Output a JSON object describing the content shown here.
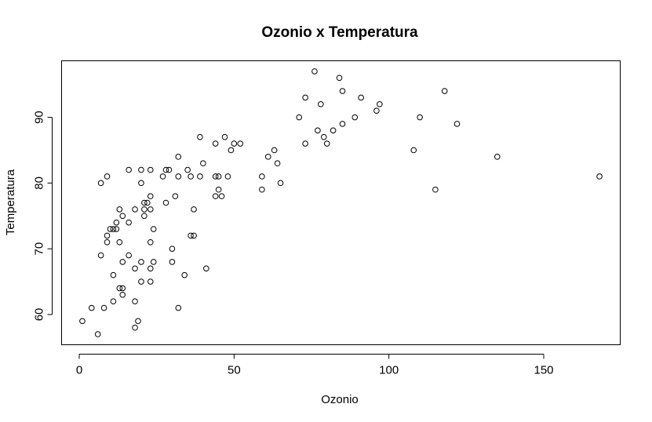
{
  "chart_data": {
    "type": "scatter",
    "title": "Ozonio x Temperatura",
    "xlabel": "Ozonio",
    "ylabel": "Temperatura",
    "xlim": [
      -5.7,
      174.7
    ],
    "ylim": [
      55.4,
      98.6
    ],
    "xticks": [
      0,
      50,
      100,
      150
    ],
    "yticks": [
      60,
      70,
      80,
      90
    ],
    "grid": false,
    "marker": "open-circle",
    "points": [
      {
        "x": 1,
        "y": 59
      },
      {
        "x": 4,
        "y": 61
      },
      {
        "x": 6,
        "y": 57
      },
      {
        "x": 7,
        "y": 69
      },
      {
        "x": 7,
        "y": 80
      },
      {
        "x": 8,
        "y": 61
      },
      {
        "x": 9,
        "y": 81
      },
      {
        "x": 9,
        "y": 72
      },
      {
        "x": 9,
        "y": 71
      },
      {
        "x": 10,
        "y": 73
      },
      {
        "x": 11,
        "y": 66
      },
      {
        "x": 11,
        "y": 73
      },
      {
        "x": 11,
        "y": 62
      },
      {
        "x": 12,
        "y": 73
      },
      {
        "x": 12,
        "y": 74
      },
      {
        "x": 13,
        "y": 76
      },
      {
        "x": 13,
        "y": 71
      },
      {
        "x": 13,
        "y": 64
      },
      {
        "x": 14,
        "y": 75
      },
      {
        "x": 14,
        "y": 63
      },
      {
        "x": 14,
        "y": 68
      },
      {
        "x": 14,
        "y": 64
      },
      {
        "x": 16,
        "y": 82
      },
      {
        "x": 16,
        "y": 74
      },
      {
        "x": 16,
        "y": 69
      },
      {
        "x": 18,
        "y": 76
      },
      {
        "x": 18,
        "y": 67
      },
      {
        "x": 18,
        "y": 62
      },
      {
        "x": 18,
        "y": 58
      },
      {
        "x": 19,
        "y": 59
      },
      {
        "x": 20,
        "y": 82
      },
      {
        "x": 20,
        "y": 80
      },
      {
        "x": 20,
        "y": 68
      },
      {
        "x": 20,
        "y": 65
      },
      {
        "x": 21,
        "y": 77
      },
      {
        "x": 21,
        "y": 75
      },
      {
        "x": 21,
        "y": 76
      },
      {
        "x": 22,
        "y": 77
      },
      {
        "x": 23,
        "y": 82
      },
      {
        "x": 23,
        "y": 78
      },
      {
        "x": 23,
        "y": 76
      },
      {
        "x": 23,
        "y": 71
      },
      {
        "x": 23,
        "y": 67
      },
      {
        "x": 23,
        "y": 65
      },
      {
        "x": 24,
        "y": 73
      },
      {
        "x": 24,
        "y": 68
      },
      {
        "x": 27,
        "y": 81
      },
      {
        "x": 28,
        "y": 82
      },
      {
        "x": 28,
        "y": 77
      },
      {
        "x": 29,
        "y": 82
      },
      {
        "x": 30,
        "y": 70
      },
      {
        "x": 30,
        "y": 68
      },
      {
        "x": 31,
        "y": 78
      },
      {
        "x": 32,
        "y": 84
      },
      {
        "x": 32,
        "y": 81
      },
      {
        "x": 32,
        "y": 61
      },
      {
        "x": 34,
        "y": 66
      },
      {
        "x": 35,
        "y": 82
      },
      {
        "x": 36,
        "y": 81
      },
      {
        "x": 36,
        "y": 72
      },
      {
        "x": 37,
        "y": 76
      },
      {
        "x": 37,
        "y": 72
      },
      {
        "x": 39,
        "y": 87
      },
      {
        "x": 39,
        "y": 81
      },
      {
        "x": 40,
        "y": 83
      },
      {
        "x": 41,
        "y": 67
      },
      {
        "x": 44,
        "y": 86
      },
      {
        "x": 44,
        "y": 81
      },
      {
        "x": 44,
        "y": 78
      },
      {
        "x": 45,
        "y": 81
      },
      {
        "x": 45,
        "y": 79
      },
      {
        "x": 46,
        "y": 78
      },
      {
        "x": 47,
        "y": 87
      },
      {
        "x": 48,
        "y": 81
      },
      {
        "x": 49,
        "y": 85
      },
      {
        "x": 50,
        "y": 86
      },
      {
        "x": 52,
        "y": 86
      },
      {
        "x": 59,
        "y": 81
      },
      {
        "x": 59,
        "y": 79
      },
      {
        "x": 61,
        "y": 84
      },
      {
        "x": 63,
        "y": 85
      },
      {
        "x": 64,
        "y": 83
      },
      {
        "x": 65,
        "y": 80
      },
      {
        "x": 71,
        "y": 90
      },
      {
        "x": 73,
        "y": 93
      },
      {
        "x": 73,
        "y": 86
      },
      {
        "x": 76,
        "y": 97
      },
      {
        "x": 77,
        "y": 88
      },
      {
        "x": 78,
        "y": 92
      },
      {
        "x": 79,
        "y": 87
      },
      {
        "x": 80,
        "y": 86
      },
      {
        "x": 82,
        "y": 88
      },
      {
        "x": 84,
        "y": 96
      },
      {
        "x": 85,
        "y": 94
      },
      {
        "x": 85,
        "y": 89
      },
      {
        "x": 89,
        "y": 90
      },
      {
        "x": 91,
        "y": 93
      },
      {
        "x": 96,
        "y": 91
      },
      {
        "x": 97,
        "y": 92
      },
      {
        "x": 108,
        "y": 85
      },
      {
        "x": 110,
        "y": 90
      },
      {
        "x": 115,
        "y": 79
      },
      {
        "x": 118,
        "y": 94
      },
      {
        "x": 122,
        "y": 89
      },
      {
        "x": 135,
        "y": 84
      },
      {
        "x": 168,
        "y": 81
      }
    ]
  }
}
